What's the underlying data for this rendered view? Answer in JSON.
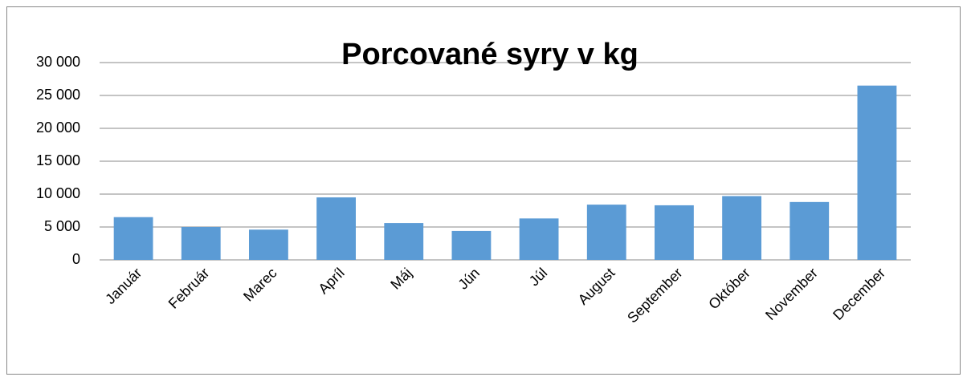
{
  "chart_data": {
    "type": "bar",
    "title": "Porcované syry v kg",
    "categories": [
      "Január",
      "Február",
      "Marec",
      "Apríl",
      "Máj",
      "Jún",
      "Júl",
      "August",
      "September",
      "Október",
      "November",
      "December"
    ],
    "values": [
      6500,
      5000,
      4600,
      9500,
      5600,
      4400,
      6300,
      8400,
      8300,
      9700,
      8800,
      26500
    ],
    "color": "#5b9bd5",
    "ylim": [
      0,
      30000
    ],
    "yticks": [
      0,
      {
        "value": 5000,
        "label": "5 000"
      },
      {
        "value": 10000,
        "label": "10 000"
      },
      {
        "value": 15000,
        "label": "15 000"
      },
      {
        "value": 20000,
        "label": "20 000"
      },
      {
        "value": 25000,
        "label": "25 000"
      },
      {
        "value": 30000,
        "label": "30 000"
      }
    ],
    "grid": true
  }
}
